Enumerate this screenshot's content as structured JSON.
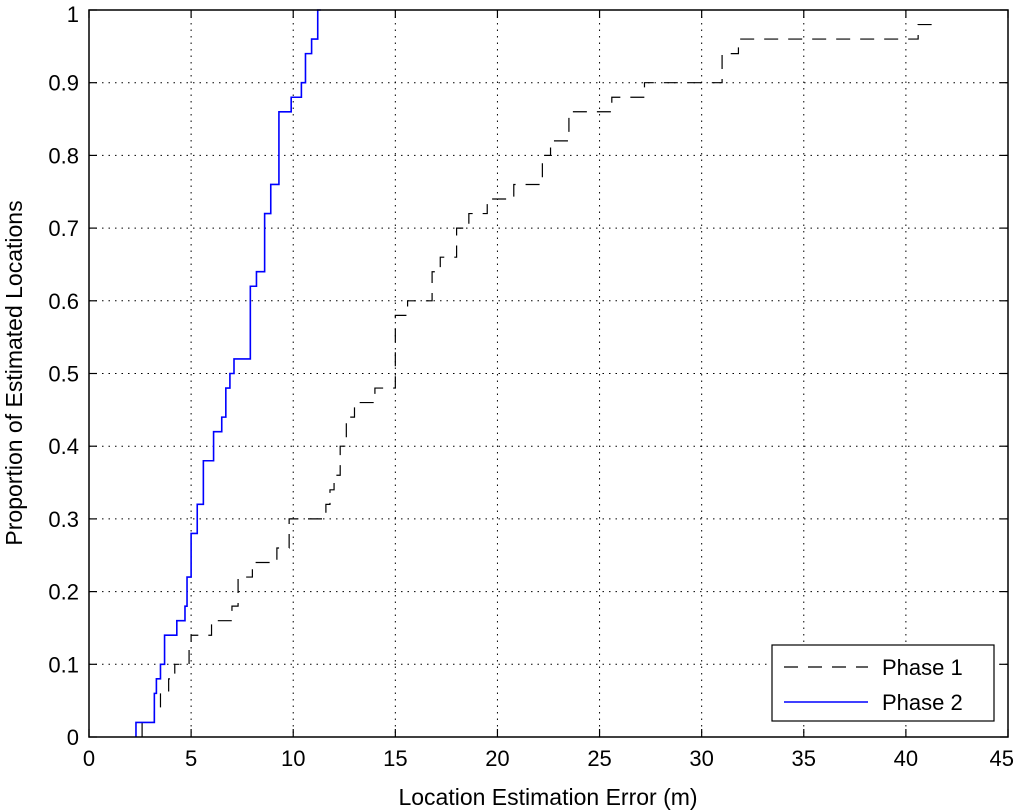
{
  "chart_data": {
    "type": "line",
    "xlabel": "Location Estimation Error (m)",
    "ylabel": "Proportion of Estimated Locations",
    "xlim": [
      0,
      45
    ],
    "ylim": [
      0,
      1
    ],
    "xticks": [
      "0",
      "5",
      "10",
      "15",
      "20",
      "25",
      "30",
      "35",
      "40",
      "45"
    ],
    "yticks": [
      "0",
      "0.1",
      "0.2",
      "0.3",
      "0.4",
      "0.5",
      "0.6",
      "0.7",
      "0.8",
      "0.9",
      "1"
    ],
    "grid": true,
    "legend_position": "bottom-right",
    "series": [
      {
        "name": "Phase 1",
        "style": "dashed",
        "color": "#000000",
        "x": [
          2.6,
          3.2,
          3.5,
          3.9,
          4.2,
          4.9,
          5.0,
          6.0,
          7.0,
          7.3,
          8.0,
          9.2,
          9.8,
          10.2,
          11.6,
          11.8,
          12.0,
          12.3,
          12.6,
          13.0,
          14.0,
          15.0,
          15.0,
          15.6,
          16.8,
          17.2,
          18.0,
          18.6,
          19.5,
          20.8,
          22.2,
          22.6,
          23.5,
          24.0,
          25.6,
          26.4,
          27.2,
          31.0,
          31.4,
          31.8,
          40.6,
          41.6
        ],
        "y": [
          0.02,
          0.04,
          0.06,
          0.08,
          0.1,
          0.12,
          0.14,
          0.16,
          0.18,
          0.22,
          0.24,
          0.26,
          0.3,
          0.3,
          0.32,
          0.34,
          0.36,
          0.4,
          0.44,
          0.46,
          0.48,
          0.5,
          0.58,
          0.6,
          0.64,
          0.66,
          0.7,
          0.72,
          0.74,
          0.76,
          0.8,
          0.82,
          0.86,
          0.86,
          0.88,
          0.88,
          0.9,
          0.94,
          0.94,
          0.96,
          0.98,
          0.98
        ]
      },
      {
        "name": "Phase 2",
        "style": "solid",
        "color": "#0000ff",
        "x": [
          2.3,
          2.7,
          3.2,
          3.3,
          3.5,
          3.7,
          4.3,
          4.7,
          4.8,
          5.0,
          5.3,
          5.6,
          6.1,
          6.5,
          6.7,
          6.9,
          7.1,
          7.9,
          8.2,
          8.6,
          8.9,
          9.3,
          9.9,
          10.4,
          10.6,
          10.9,
          11.2
        ],
        "y": [
          0.02,
          0.02,
          0.06,
          0.08,
          0.1,
          0.14,
          0.16,
          0.18,
          0.22,
          0.28,
          0.32,
          0.38,
          0.42,
          0.44,
          0.48,
          0.5,
          0.52,
          0.62,
          0.64,
          0.72,
          0.76,
          0.86,
          0.88,
          0.9,
          0.94,
          0.96,
          0.98
        ]
      }
    ]
  }
}
